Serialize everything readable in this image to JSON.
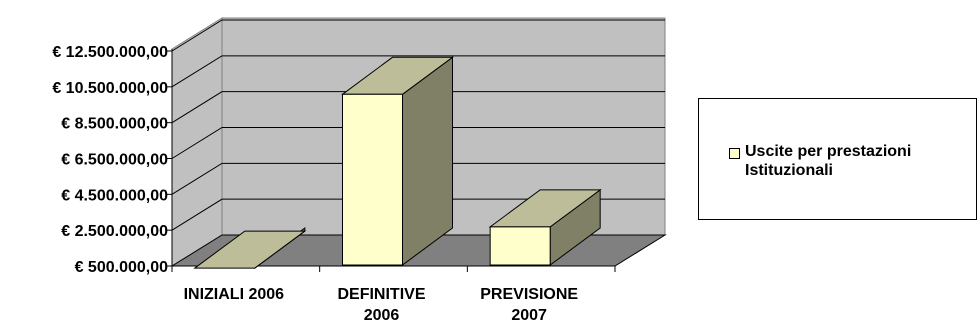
{
  "chart_data": {
    "type": "bar",
    "style": "3d-column",
    "categories": [
      [
        "INIZIALI 2006"
      ],
      [
        "DEFINITIVE",
        "2006"
      ],
      [
        "PREVISIONE",
        "2007"
      ]
    ],
    "series": [
      {
        "name_lines": [
          "Uscite per prestazioni",
          "Istituzionali"
        ],
        "values": [
          1500000,
          11200000,
          3800000
        ]
      }
    ],
    "y_ticks": [
      "€ 500.000,00",
      "€ 2.500.000,00",
      "€ 4.500.000,00",
      "€ 6.500.000,00",
      "€ 8.500.000,00",
      "€ 10.500.000,00",
      "€ 12.500.000,00"
    ],
    "ylim": [
      500000,
      12500000
    ],
    "grid": true,
    "legend_position": "right",
    "colors": {
      "bar_front": "#FFFFCC",
      "bar_top": "#BDBD99",
      "bar_side": "#808066",
      "wall": "#C0C0C0",
      "floor": "#808080",
      "gridline": "#000000"
    }
  }
}
